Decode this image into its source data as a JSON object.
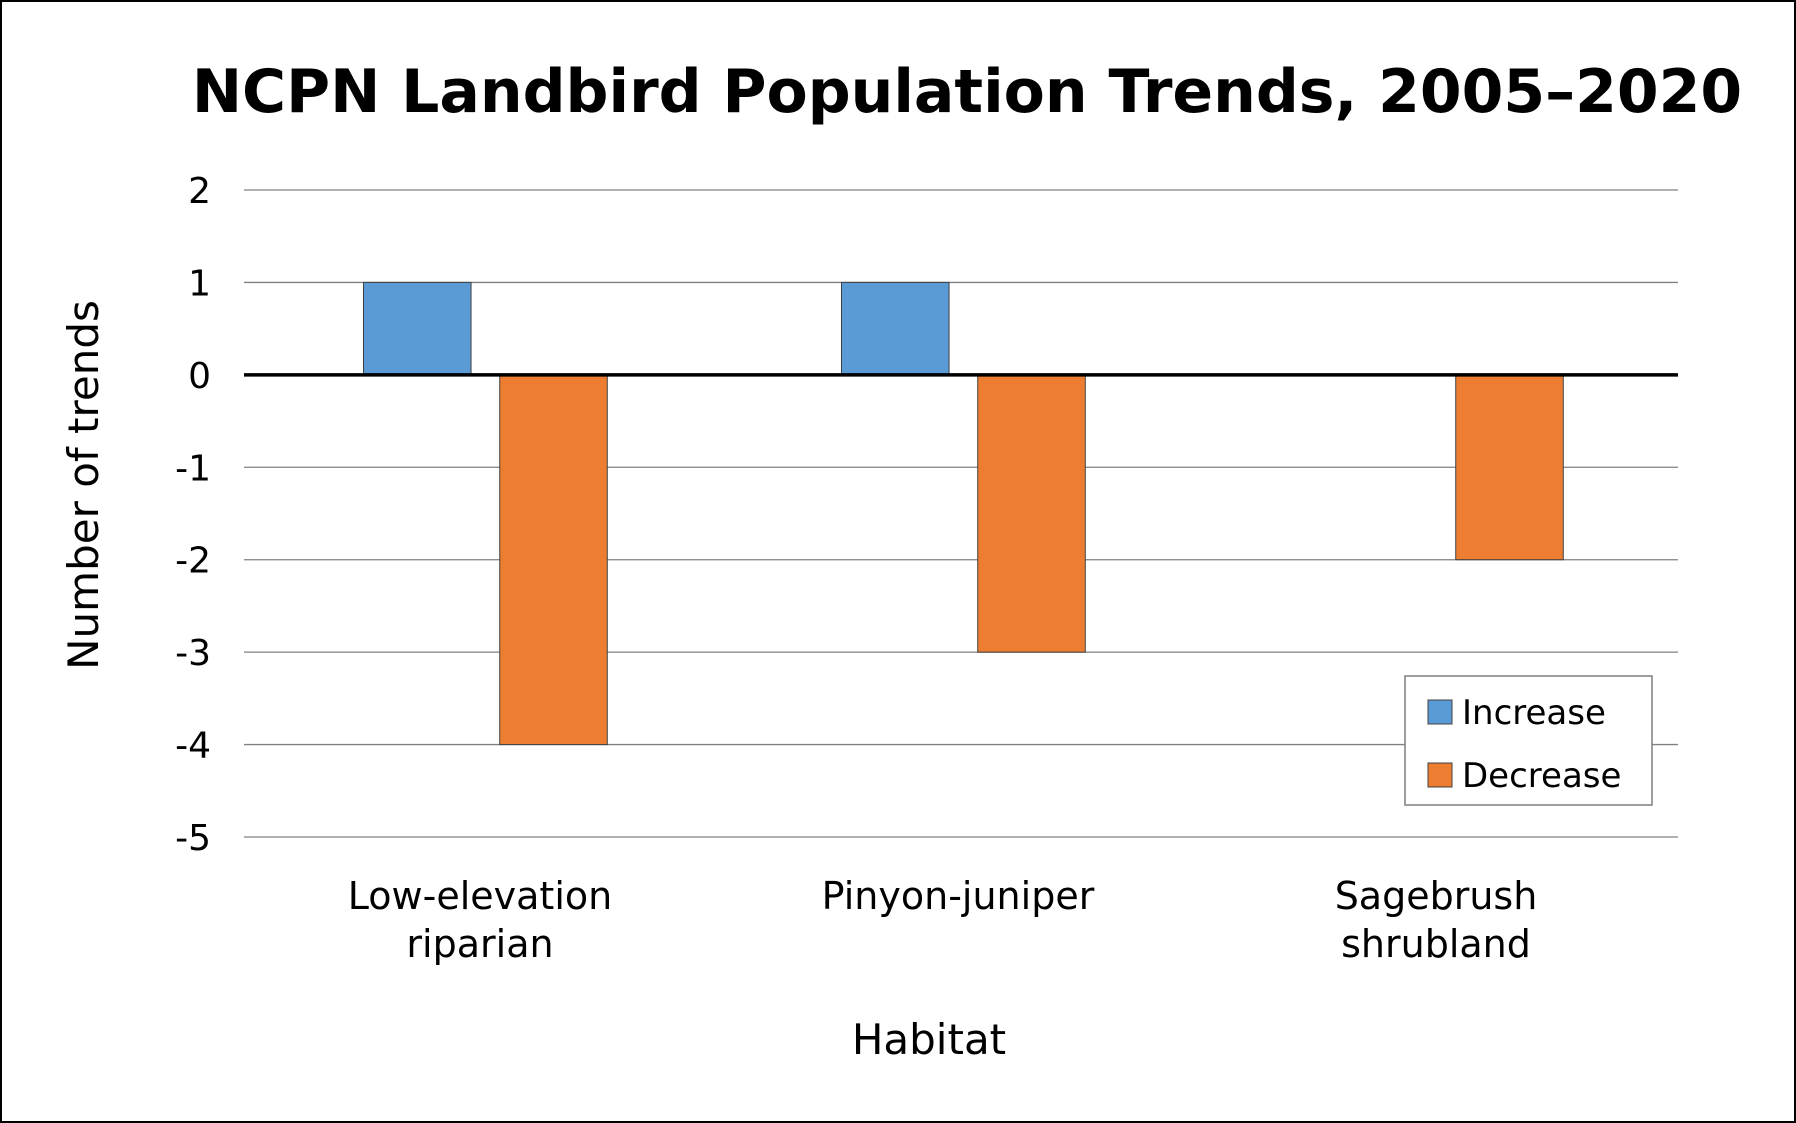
{
  "chart_data": {
    "type": "bar",
    "title": "NCPN Landbird Population Trends, 2005–2020",
    "xlabel": "Habitat",
    "ylabel": "Number of trends",
    "ylim": [
      -5,
      2
    ],
    "yticks": [
      "2",
      "1",
      "0",
      "-1",
      "-2",
      "-3",
      "-4",
      "-5"
    ],
    "grid": true,
    "legend_position": "bottom-right",
    "categories": [
      [
        "Low-elevation",
        "riparian"
      ],
      [
        "Pinyon-juniper"
      ],
      [
        "Sagebrush",
        "shrubland"
      ]
    ],
    "series": [
      {
        "name": "Increase",
        "color": "#5b9bd5",
        "values": [
          1,
          1,
          0
        ]
      },
      {
        "name": "Decrease",
        "color": "#ed7d31",
        "values": [
          -4,
          -3,
          -2
        ]
      }
    ]
  }
}
